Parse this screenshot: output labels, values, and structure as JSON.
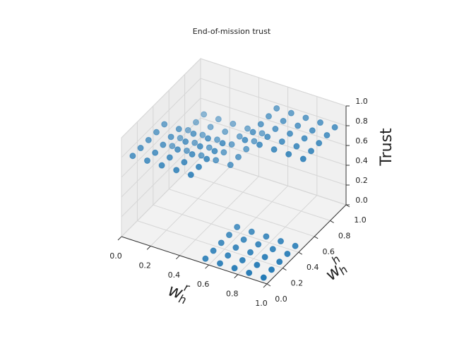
{
  "chart_data": {
    "type": "scatter3d",
    "title": "End-of-mission trust",
    "xlabel": {
      "base": "w",
      "sub": "h",
      "sup": "r"
    },
    "ylabel": {
      "base": "w",
      "sub": "h",
      "sup": "h"
    },
    "zlabel": "Trust",
    "color": "#1f77b4",
    "xlim": [
      0,
      1
    ],
    "ylim": [
      0,
      1
    ],
    "zlim": [
      0,
      1
    ],
    "xticks": [
      {
        "value": 0,
        "label": "0.0"
      },
      {
        "value": 0.2,
        "label": "0.2"
      },
      {
        "value": 0.4,
        "label": "0.4"
      },
      {
        "value": 0.6,
        "label": "0.6"
      },
      {
        "value": 0.8,
        "label": "0.8"
      },
      {
        "value": 1,
        "label": "1.0"
      }
    ],
    "yticks": [
      {
        "value": 0,
        "label": "0.0"
      },
      {
        "value": 0.2,
        "label": "0.2"
      },
      {
        "value": 0.4,
        "label": "0.4"
      },
      {
        "value": 0.6,
        "label": "0.6"
      },
      {
        "value": 0.8,
        "label": "0.8"
      },
      {
        "value": 1,
        "label": "1.0"
      }
    ],
    "zticks": [
      {
        "value": 0,
        "label": "0.0"
      },
      {
        "value": 0.2,
        "label": "0.2"
      },
      {
        "value": 0.4,
        "label": "0.4"
      },
      {
        "value": 0.6,
        "label": "0.6"
      },
      {
        "value": 0.8,
        "label": "0.8"
      },
      {
        "value": 1,
        "label": "1.0"
      }
    ],
    "grid": true,
    "x": [
      0.05,
      0.15,
      0.25,
      0.35,
      0.45,
      0.55,
      0.65,
      0.75,
      0.85,
      0.95,
      0.05,
      0.15,
      0.25,
      0.35,
      0.45,
      0.55,
      0.65,
      0.75,
      0.85,
      0.95,
      0.05,
      0.15,
      0.25,
      0.35,
      0.45,
      0.55,
      0.65,
      0.75,
      0.85,
      0.95,
      0.05,
      0.15,
      0.25,
      0.35,
      0.45,
      0.55,
      0.65,
      0.75,
      0.85,
      0.95,
      0.05,
      0.15,
      0.25,
      0.35,
      0.45,
      0.55,
      0.65,
      0.75,
      0.85,
      0.95,
      0.05,
      0.15,
      0.25,
      0.35,
      0.45,
      0.55,
      0.65,
      0.75,
      0.85,
      0.95,
      0.05,
      0.15,
      0.25,
      0.35,
      0.45,
      0.55,
      0.65,
      0.75,
      0.85,
      0.95,
      0.05,
      0.15,
      0.25,
      0.35,
      0.45,
      0.55,
      0.65,
      0.75,
      0.85,
      0.95,
      0.05,
      0.15,
      0.25,
      0.35,
      0.45,
      0.55,
      0.65,
      0.75,
      0.85,
      0.95,
      0.05,
      0.15,
      0.25,
      0.35,
      0.45,
      0.55,
      0.65,
      0.75,
      0.85,
      0.95
    ],
    "y": [
      0.05,
      0.05,
      0.05,
      0.05,
      0.05,
      0.05,
      0.05,
      0.05,
      0.05,
      0.05,
      0.15,
      0.15,
      0.15,
      0.15,
      0.15,
      0.15,
      0.15,
      0.15,
      0.15,
      0.15,
      0.25,
      0.25,
      0.25,
      0.25,
      0.25,
      0.25,
      0.25,
      0.25,
      0.25,
      0.25,
      0.35,
      0.35,
      0.35,
      0.35,
      0.35,
      0.35,
      0.35,
      0.35,
      0.35,
      0.35,
      0.45,
      0.45,
      0.45,
      0.45,
      0.45,
      0.45,
      0.45,
      0.45,
      0.45,
      0.45,
      0.55,
      0.55,
      0.55,
      0.55,
      0.55,
      0.55,
      0.55,
      0.55,
      0.55,
      0.55,
      0.65,
      0.65,
      0.65,
      0.65,
      0.65,
      0.65,
      0.65,
      0.65,
      0.65,
      0.65,
      0.75,
      0.75,
      0.75,
      0.75,
      0.75,
      0.75,
      0.75,
      0.75,
      0.75,
      0.75,
      0.85,
      0.85,
      0.85,
      0.85,
      0.85,
      0.85,
      0.85,
      0.85,
      0.85,
      0.85,
      0.95,
      0.95,
      0.95,
      0.95,
      0.95,
      0.95,
      0.95,
      0.95,
      0.95,
      0.95
    ],
    "z": [
      0.8,
      0.8,
      0.8,
      0.8,
      0.8,
      0,
      0,
      0,
      0,
      0,
      0.8,
      0.8,
      0.8,
      0.8,
      0.8,
      0,
      0,
      0,
      0,
      0,
      0.8,
      0.8,
      0.8,
      0.8,
      0.8,
      0,
      0,
      0,
      0,
      0,
      0.8,
      0.8,
      0.8,
      0.8,
      0.8,
      0,
      0,
      0,
      0,
      0,
      0.8,
      0.8,
      0.8,
      0.8,
      0.8,
      0,
      0,
      0,
      0,
      0,
      0.5,
      0.5,
      0.5,
      0.5,
      0.5,
      0.8,
      0.8,
      0.8,
      0.8,
      0.8,
      0.5,
      0.5,
      0.5,
      0.5,
      0.5,
      0.8,
      0.8,
      0.8,
      0.8,
      0.8,
      0.5,
      0.5,
      0.5,
      0.5,
      0.5,
      0.8,
      0.8,
      0.8,
      0.8,
      0.8,
      0.5,
      0.5,
      0.5,
      0.5,
      0.5,
      0.8,
      0.8,
      0.8,
      0.8,
      0.8,
      0.5,
      0.5,
      0.5,
      0.5,
      0.5,
      0.8,
      0.8,
      0.8,
      0.8,
      0.8
    ]
  }
}
